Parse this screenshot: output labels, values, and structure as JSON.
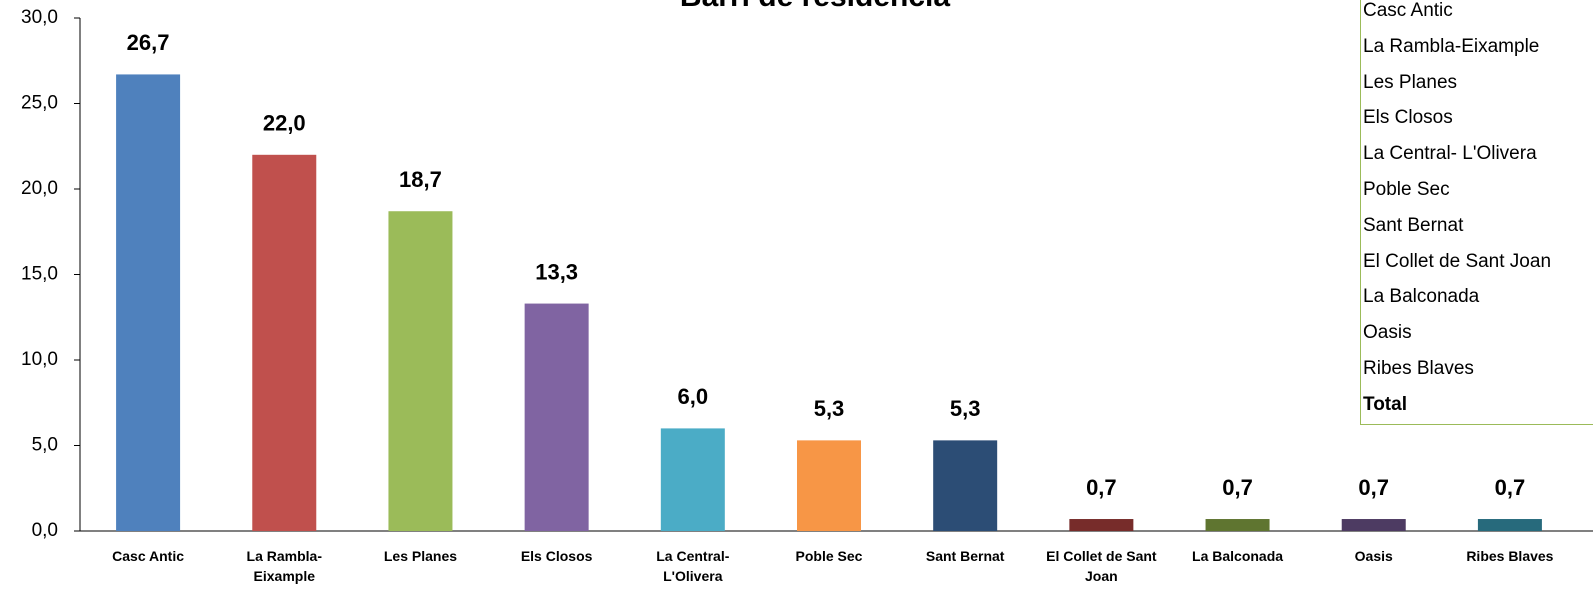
{
  "chart_data": {
    "type": "bar",
    "title": "Barri de residència",
    "categories": [
      "Casc Antic",
      "La Rambla-Eixample",
      "Les Planes",
      "Els Closos",
      "La Central- L'Olivera",
      "Poble Sec",
      "Sant Bernat",
      "El Collet de Sant Joan",
      "La Balconada",
      "Oasis",
      "Ribes Blaves"
    ],
    "values": [
      26.7,
      22.0,
      18.7,
      13.3,
      6.0,
      5.3,
      5.3,
      0.7,
      0.7,
      0.7,
      0.7
    ],
    "value_labels": [
      "26,7",
      "22,0",
      "18,7",
      "13,3",
      "6,0",
      "5,3",
      "5,3",
      "0,7",
      "0,7",
      "0,7",
      "0,7"
    ],
    "colors": [
      "#4f81bd",
      "#c0504d",
      "#9bbb59",
      "#8064a2",
      "#4bacc6",
      "#f79646",
      "#2c4d75",
      "#772c2a",
      "#5f7530",
      "#4d3b62",
      "#276a7c"
    ],
    "ylim": [
      0,
      30
    ],
    "yticks": [
      {
        "value": 0,
        "label": "0,0"
      },
      {
        "value": 5,
        "label": "5,0"
      },
      {
        "value": 10,
        "label": "10,0"
      },
      {
        "value": 15,
        "label": "15,0"
      },
      {
        "value": 20,
        "label": "20,0"
      },
      {
        "value": 25,
        "label": "25,0"
      },
      {
        "value": 30,
        "label": "30,0"
      }
    ],
    "grid": false
  },
  "side_list": {
    "items": [
      "Casc Antic",
      "La Rambla-Eixample",
      "Les Planes",
      "Els Closos",
      "La Central- L'Olivera",
      "Poble Sec",
      "Sant Bernat",
      "El Collet de Sant Joan",
      "La Balconada",
      "Oasis",
      "Ribes Blaves"
    ],
    "total": "Total"
  }
}
